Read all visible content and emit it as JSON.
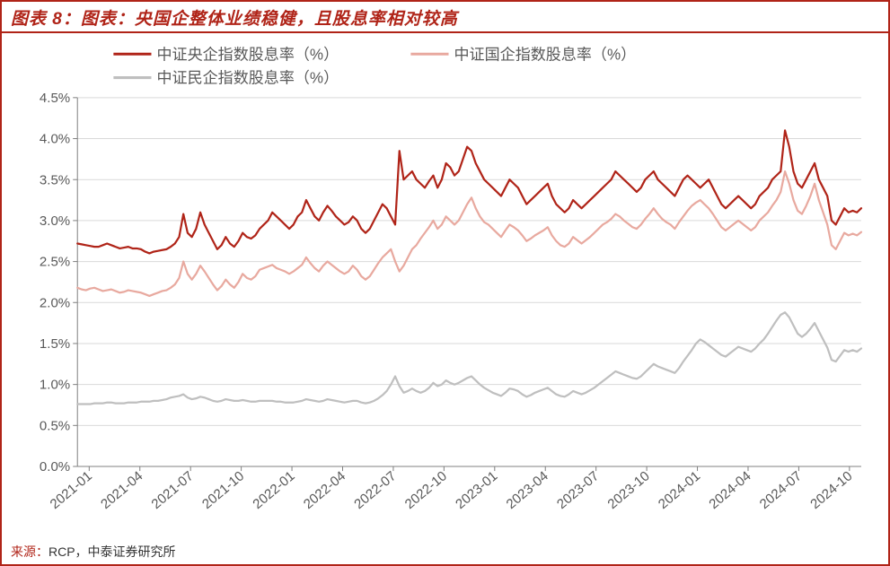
{
  "title_prefix": "图表 8：",
  "title_main": "图表：央国企整体业绩稳健，且股息率相对较高",
  "source_label": "来源：",
  "source_text": "RCP，中泰证券研究所",
  "chart": {
    "type": "line",
    "background_color": "#ffffff",
    "border_color": "#b02418",
    "grid_color": "#d9d9d9",
    "axis_text_color": "#595959",
    "y_axis": {
      "min": 0.0,
      "max": 4.5,
      "step": 0.5,
      "format": "percent",
      "labels": [
        "0.0%",
        "0.5%",
        "1.0%",
        "1.5%",
        "2.0%",
        "2.5%",
        "3.0%",
        "3.5%",
        "4.0%",
        "4.5%"
      ]
    },
    "x_axis": {
      "labels": [
        "2021-01",
        "2021-04",
        "2021-07",
        "2021-10",
        "2022-01",
        "2022-04",
        "2022-07",
        "2022-10",
        "2023-01",
        "2023-04",
        "2023-07",
        "2023-10",
        "2024-01",
        "2024-04",
        "2024-07",
        "2024-10"
      ],
      "rotation": -40
    },
    "legend": {
      "position": "top",
      "items": [
        {
          "label": "中证央企指数股息率（%）",
          "color": "#b02418",
          "width": 3
        },
        {
          "label": "中证国企指数股息率（%）",
          "color": "#e8a99f",
          "width": 3
        },
        {
          "label": "中证民企指数股息率（%）",
          "color": "#bfbfbf",
          "width": 3
        }
      ]
    },
    "series": [
      {
        "name": "中证央企指数股息率（%）",
        "color": "#b02418",
        "line_width": 2.2,
        "points": [
          2.72,
          2.71,
          2.7,
          2.69,
          2.68,
          2.68,
          2.7,
          2.72,
          2.7,
          2.68,
          2.66,
          2.67,
          2.68,
          2.66,
          2.66,
          2.65,
          2.62,
          2.6,
          2.62,
          2.63,
          2.64,
          2.65,
          2.68,
          2.72,
          2.8,
          3.08,
          2.85,
          2.8,
          2.9,
          3.1,
          2.95,
          2.85,
          2.75,
          2.65,
          2.7,
          2.8,
          2.72,
          2.68,
          2.75,
          2.85,
          2.8,
          2.78,
          2.82,
          2.9,
          2.95,
          3.0,
          3.1,
          3.05,
          3.0,
          2.95,
          2.9,
          2.95,
          3.05,
          3.1,
          3.25,
          3.15,
          3.05,
          3.0,
          3.1,
          3.18,
          3.12,
          3.05,
          3.0,
          2.95,
          2.98,
          3.05,
          3.0,
          2.9,
          2.85,
          2.9,
          3.0,
          3.1,
          3.2,
          3.15,
          3.05,
          2.95,
          3.85,
          3.5,
          3.55,
          3.6,
          3.5,
          3.45,
          3.4,
          3.48,
          3.55,
          3.4,
          3.5,
          3.7,
          3.65,
          3.55,
          3.6,
          3.75,
          3.9,
          3.85,
          3.7,
          3.6,
          3.5,
          3.45,
          3.4,
          3.35,
          3.3,
          3.4,
          3.5,
          3.45,
          3.4,
          3.3,
          3.2,
          3.25,
          3.3,
          3.35,
          3.4,
          3.45,
          3.3,
          3.2,
          3.15,
          3.1,
          3.15,
          3.25,
          3.2,
          3.15,
          3.2,
          3.25,
          3.3,
          3.35,
          3.4,
          3.45,
          3.5,
          3.6,
          3.55,
          3.5,
          3.45,
          3.4,
          3.35,
          3.4,
          3.5,
          3.55,
          3.6,
          3.5,
          3.45,
          3.4,
          3.35,
          3.3,
          3.4,
          3.5,
          3.55,
          3.5,
          3.45,
          3.4,
          3.45,
          3.5,
          3.4,
          3.3,
          3.2,
          3.15,
          3.2,
          3.25,
          3.3,
          3.25,
          3.2,
          3.15,
          3.2,
          3.3,
          3.35,
          3.4,
          3.5,
          3.55,
          3.6,
          4.1,
          3.9,
          3.6,
          3.45,
          3.4,
          3.5,
          3.6,
          3.7,
          3.5,
          3.4,
          3.3,
          3.0,
          2.95,
          3.05,
          3.15,
          3.1,
          3.12,
          3.1,
          3.15
        ]
      },
      {
        "name": "中证国企指数股息率（%）",
        "color": "#e8a99f",
        "line_width": 2.2,
        "points": [
          2.18,
          2.16,
          2.15,
          2.17,
          2.18,
          2.16,
          2.14,
          2.15,
          2.16,
          2.14,
          2.12,
          2.13,
          2.15,
          2.14,
          2.13,
          2.12,
          2.1,
          2.08,
          2.1,
          2.12,
          2.14,
          2.15,
          2.18,
          2.22,
          2.3,
          2.5,
          2.35,
          2.28,
          2.35,
          2.45,
          2.38,
          2.3,
          2.22,
          2.15,
          2.2,
          2.28,
          2.22,
          2.18,
          2.25,
          2.35,
          2.3,
          2.28,
          2.32,
          2.4,
          2.42,
          2.44,
          2.46,
          2.42,
          2.4,
          2.38,
          2.35,
          2.38,
          2.42,
          2.46,
          2.55,
          2.48,
          2.42,
          2.38,
          2.45,
          2.5,
          2.46,
          2.42,
          2.38,
          2.35,
          2.38,
          2.45,
          2.4,
          2.32,
          2.28,
          2.32,
          2.4,
          2.48,
          2.55,
          2.6,
          2.65,
          2.5,
          2.38,
          2.45,
          2.55,
          2.65,
          2.7,
          2.78,
          2.85,
          2.92,
          3.0,
          2.9,
          2.95,
          3.05,
          3.0,
          2.95,
          3.0,
          3.1,
          3.2,
          3.28,
          3.15,
          3.05,
          2.98,
          2.95,
          2.9,
          2.85,
          2.8,
          2.88,
          2.95,
          2.92,
          2.88,
          2.82,
          2.75,
          2.78,
          2.82,
          2.85,
          2.88,
          2.92,
          2.82,
          2.75,
          2.7,
          2.68,
          2.72,
          2.8,
          2.76,
          2.72,
          2.76,
          2.8,
          2.85,
          2.9,
          2.95,
          2.98,
          3.02,
          3.08,
          3.05,
          3.0,
          2.96,
          2.92,
          2.9,
          2.95,
          3.02,
          3.08,
          3.15,
          3.08,
          3.02,
          2.98,
          2.95,
          2.9,
          2.98,
          3.05,
          3.12,
          3.18,
          3.22,
          3.25,
          3.2,
          3.15,
          3.08,
          3.0,
          2.92,
          2.88,
          2.92,
          2.96,
          3.0,
          2.96,
          2.92,
          2.88,
          2.92,
          3.0,
          3.05,
          3.1,
          3.18,
          3.25,
          3.35,
          3.6,
          3.45,
          3.25,
          3.12,
          3.08,
          3.18,
          3.3,
          3.45,
          3.25,
          3.1,
          2.95,
          2.7,
          2.65,
          2.75,
          2.85,
          2.82,
          2.84,
          2.82,
          2.86
        ]
      },
      {
        "name": "中证民企指数股息率（%）",
        "color": "#bfbfbf",
        "line_width": 2.2,
        "points": [
          0.76,
          0.76,
          0.76,
          0.76,
          0.77,
          0.77,
          0.77,
          0.78,
          0.78,
          0.77,
          0.77,
          0.77,
          0.78,
          0.78,
          0.78,
          0.79,
          0.79,
          0.79,
          0.8,
          0.8,
          0.81,
          0.82,
          0.84,
          0.85,
          0.86,
          0.88,
          0.84,
          0.82,
          0.83,
          0.85,
          0.84,
          0.82,
          0.8,
          0.79,
          0.8,
          0.82,
          0.81,
          0.8,
          0.8,
          0.81,
          0.8,
          0.79,
          0.79,
          0.8,
          0.8,
          0.8,
          0.8,
          0.79,
          0.79,
          0.78,
          0.78,
          0.78,
          0.79,
          0.8,
          0.82,
          0.81,
          0.8,
          0.79,
          0.8,
          0.82,
          0.81,
          0.8,
          0.79,
          0.78,
          0.79,
          0.8,
          0.8,
          0.78,
          0.77,
          0.78,
          0.8,
          0.83,
          0.87,
          0.92,
          1.0,
          1.1,
          0.98,
          0.9,
          0.92,
          0.95,
          0.92,
          0.9,
          0.92,
          0.96,
          1.02,
          0.98,
          1.0,
          1.05,
          1.02,
          1.0,
          1.02,
          1.05,
          1.08,
          1.1,
          1.05,
          1.0,
          0.96,
          0.93,
          0.9,
          0.88,
          0.86,
          0.9,
          0.95,
          0.94,
          0.92,
          0.88,
          0.85,
          0.87,
          0.9,
          0.92,
          0.94,
          0.96,
          0.92,
          0.88,
          0.86,
          0.85,
          0.88,
          0.92,
          0.9,
          0.88,
          0.9,
          0.93,
          0.96,
          1.0,
          1.04,
          1.08,
          1.12,
          1.16,
          1.14,
          1.12,
          1.1,
          1.08,
          1.07,
          1.1,
          1.15,
          1.2,
          1.25,
          1.22,
          1.2,
          1.18,
          1.16,
          1.14,
          1.2,
          1.28,
          1.35,
          1.42,
          1.5,
          1.55,
          1.52,
          1.48,
          1.44,
          1.4,
          1.36,
          1.34,
          1.38,
          1.42,
          1.46,
          1.44,
          1.42,
          1.4,
          1.44,
          1.5,
          1.55,
          1.62,
          1.7,
          1.78,
          1.85,
          1.88,
          1.82,
          1.72,
          1.62,
          1.58,
          1.62,
          1.68,
          1.75,
          1.65,
          1.55,
          1.45,
          1.3,
          1.28,
          1.35,
          1.42,
          1.4,
          1.42,
          1.4,
          1.44
        ]
      }
    ]
  }
}
